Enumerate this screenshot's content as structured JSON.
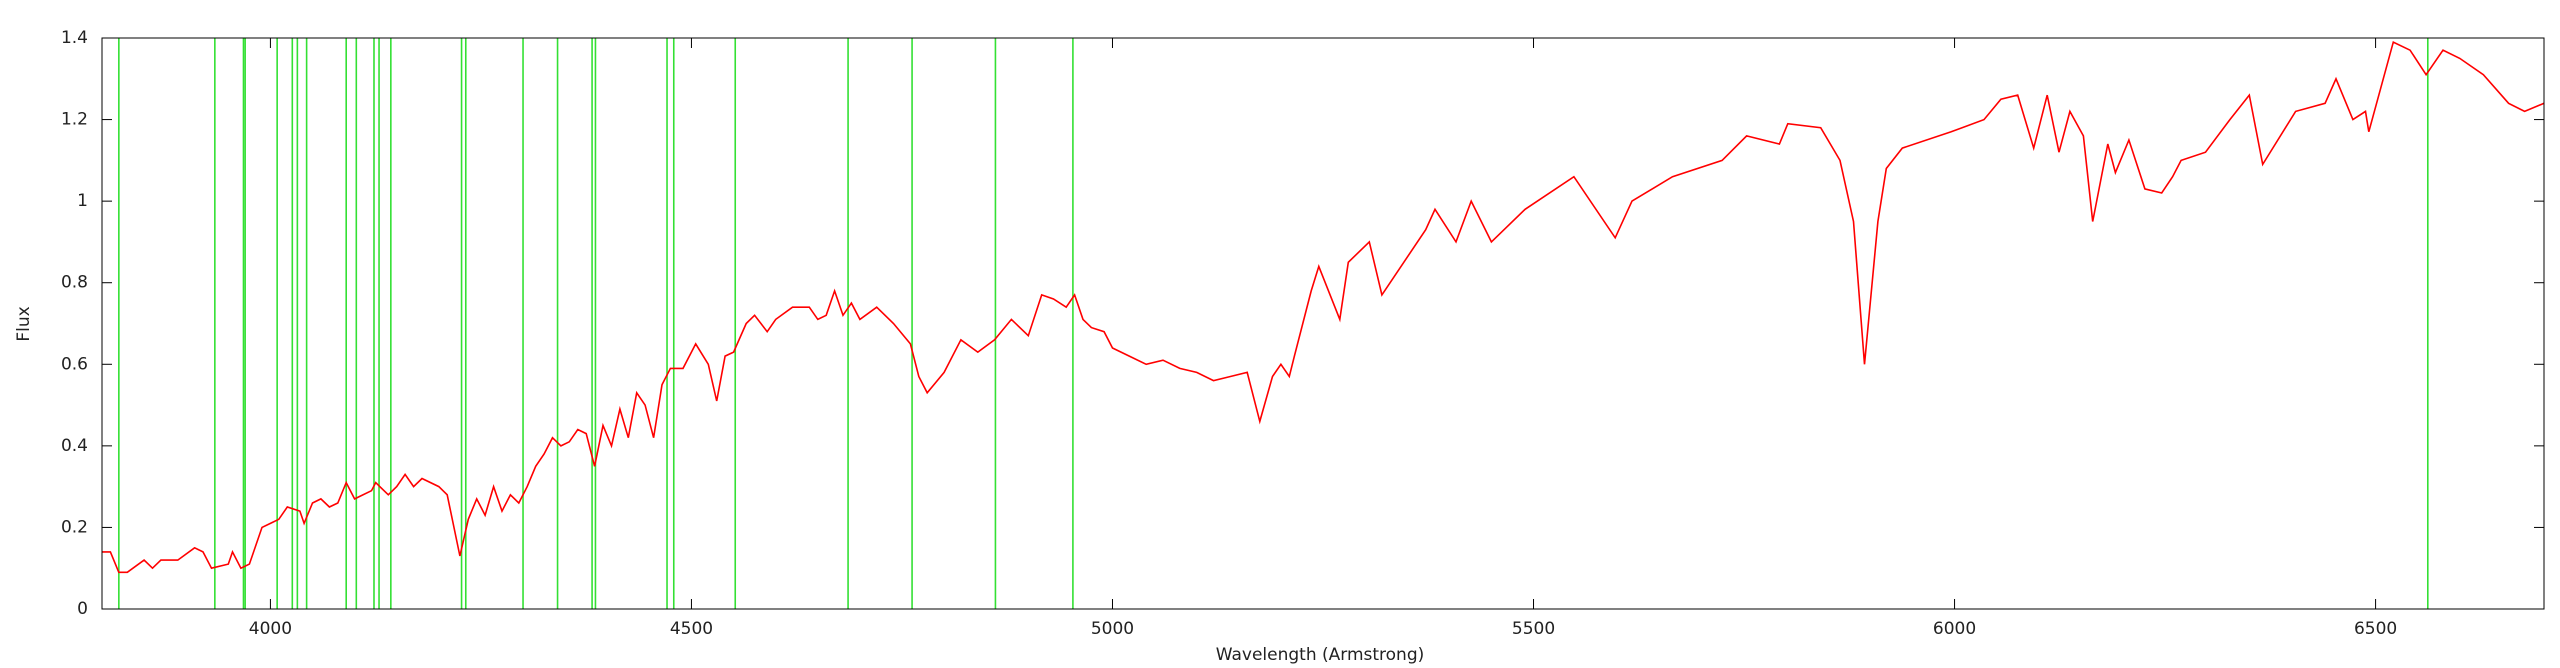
{
  "chart_data": {
    "type": "line",
    "x_label": "Wavelength (Armstrong)",
    "y_label": "Flux",
    "xlim": [
      3800,
      6700
    ],
    "xticks": [
      4000,
      4500,
      5000,
      5500,
      6000,
      6500
    ],
    "ylim": [
      0,
      1.4
    ],
    "yticks": [
      0,
      0.2,
      0.4,
      0.6,
      0.8,
      1,
      1.2,
      1.4
    ],
    "grid": false,
    "x": [
      3800,
      3810,
      3820,
      3830,
      3850,
      3860,
      3870,
      3890,
      3910,
      3920,
      3930,
      3950,
      3955,
      3965,
      3975,
      3990,
      4000,
      4010,
      4020,
      4035,
      4040,
      4050,
      4060,
      4070,
      4080,
      4090,
      4100,
      4120,
      4125,
      4140,
      4150,
      4160,
      4170,
      4180,
      4200,
      4210,
      4225,
      4235,
      4245,
      4255,
      4265,
      4275,
      4285,
      4295,
      4305,
      4315,
      4325,
      4335,
      4345,
      4355,
      4365,
      4375,
      4385,
      4395,
      4405,
      4415,
      4425,
      4435,
      4445,
      4455,
      4465,
      4475,
      4490,
      4505,
      4520,
      4530,
      4540,
      4550,
      4565,
      4575,
      4590,
      4600,
      4620,
      4640,
      4650,
      4660,
      4670,
      4680,
      4690,
      4700,
      4720,
      4740,
      4760,
      4770,
      4780,
      4800,
      4820,
      4840,
      4860,
      4880,
      4900,
      4916,
      4930,
      4945,
      4955,
      4965,
      4975,
      4990,
      5000,
      5020,
      5040,
      5060,
      5080,
      5100,
      5120,
      5140,
      5160,
      5175,
      5190,
      5200,
      5210,
      5216,
      5236,
      5245,
      5270,
      5280,
      5305,
      5320,
      5372,
      5383,
      5408,
      5426,
      5450,
      5490,
      5548,
      5597,
      5617,
      5665,
      5724,
      5753,
      5792,
      5802,
      5841,
      5864,
      5880,
      5893,
      5909,
      5919,
      5938,
      5996,
      6035,
      6055,
      6075,
      6094,
      6110,
      6124,
      6137,
      6153,
      6164,
      6182,
      6191,
      6207,
      6226,
      6246,
      6259,
      6269,
      6298,
      6327,
      6350,
      6366,
      6405,
      6440,
      6453,
      6473,
      6488,
      6492,
      6521,
      6541,
      6560,
      6580,
      6600,
      6628,
      6658,
      6677,
      6700
    ],
    "series": [
      {
        "name": "Flux",
        "color": "#ff0000",
        "values": [
          0.14,
          0.14,
          0.09,
          0.09,
          0.12,
          0.1,
          0.12,
          0.12,
          0.15,
          0.14,
          0.1,
          0.11,
          0.14,
          0.1,
          0.11,
          0.2,
          0.21,
          0.22,
          0.25,
          0.24,
          0.21,
          0.26,
          0.27,
          0.25,
          0.26,
          0.31,
          0.27,
          0.29,
          0.31,
          0.28,
          0.3,
          0.33,
          0.3,
          0.32,
          0.3,
          0.28,
          0.13,
          0.22,
          0.27,
          0.23,
          0.3,
          0.24,
          0.28,
          0.26,
          0.3,
          0.35,
          0.38,
          0.42,
          0.4,
          0.41,
          0.44,
          0.43,
          0.35,
          0.45,
          0.4,
          0.49,
          0.42,
          0.53,
          0.5,
          0.42,
          0.55,
          0.59,
          0.59,
          0.65,
          0.6,
          0.51,
          0.62,
          0.63,
          0.7,
          0.72,
          0.68,
          0.71,
          0.74,
          0.74,
          0.71,
          0.72,
          0.78,
          0.72,
          0.75,
          0.71,
          0.74,
          0.7,
          0.65,
          0.57,
          0.53,
          0.58,
          0.66,
          0.63,
          0.66,
          0.71,
          0.67,
          0.77,
          0.76,
          0.74,
          0.77,
          0.71,
          0.69,
          0.68,
          0.64,
          0.62,
          0.6,
          0.61,
          0.59,
          0.58,
          0.56,
          0.57,
          0.58,
          0.46,
          0.57,
          0.6,
          0.57,
          0.62,
          0.78,
          0.84,
          0.71,
          0.85,
          0.9,
          0.77,
          0.93,
          0.98,
          0.9,
          1.0,
          0.9,
          0.98,
          1.06,
          0.91,
          1.0,
          1.06,
          1.1,
          1.16,
          1.14,
          1.19,
          1.18,
          1.1,
          0.95,
          0.6,
          0.95,
          1.08,
          1.13,
          1.17,
          1.2,
          1.25,
          1.26,
          1.13,
          1.26,
          1.12,
          1.22,
          1.16,
          0.95,
          1.14,
          1.07,
          1.15,
          1.03,
          1.02,
          1.06,
          1.1,
          1.12,
          1.2,
          1.26,
          1.09,
          1.22,
          1.24,
          1.3,
          1.2,
          1.22,
          1.17,
          1.39,
          1.37,
          1.31,
          1.37,
          1.35,
          1.31,
          1.24,
          1.22,
          1.24
        ]
      }
    ],
    "vlines": {
      "color": "#33e033",
      "x": [
        3820,
        3934,
        3968,
        3970,
        4008,
        4026,
        4032,
        4043,
        4090,
        4102,
        4123,
        4129,
        4143,
        4227,
        4232,
        4300,
        4341,
        4382,
        4386,
        4471,
        4479,
        4552,
        4686,
        4762,
        4861,
        4953,
        6562
      ]
    }
  }
}
